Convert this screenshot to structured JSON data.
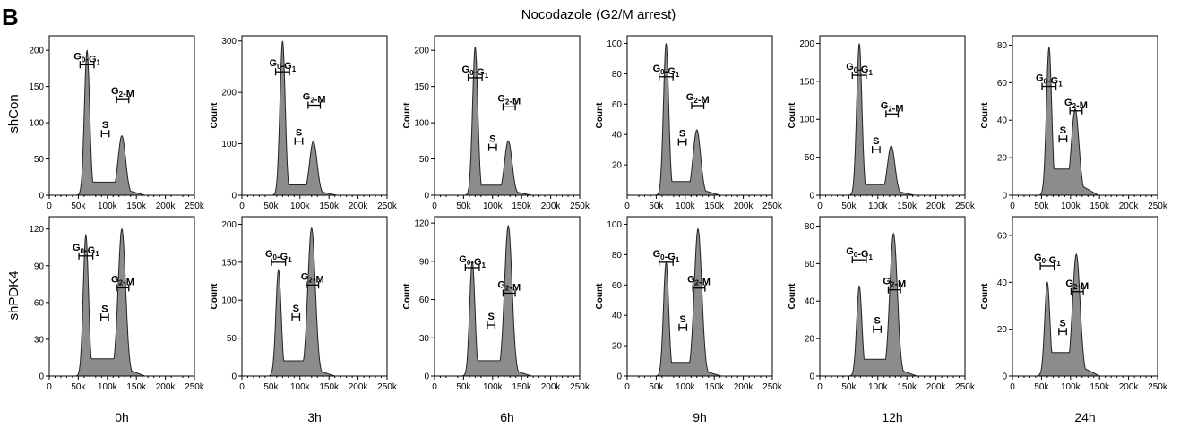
{
  "figure": {
    "panel_letter": "B",
    "title": "Nocodazole (G2/M arrest)",
    "row_labels": [
      "shCon",
      "shPDK4"
    ],
    "column_labels": [
      "0h",
      "3h",
      "6h",
      "9h",
      "12h",
      "24h"
    ]
  },
  "chart_data": {
    "type": "histogram-grid",
    "x_ticks": [
      "0",
      "50k",
      "100k",
      "150k",
      "200k",
      "250k"
    ],
    "xlim": [
      0,
      250000
    ],
    "gates": {
      "G0G1": {
        "main": "G",
        "sub1": "0",
        "mid": "-G",
        "sub2": "1"
      },
      "S": {
        "main": "S"
      },
      "G2M": {
        "main": "G",
        "sub1": "2",
        "rest": "-M"
      }
    },
    "panels": [
      {
        "row": 0,
        "col": 0,
        "ylabel": "",
        "ymax": 220,
        "y_ticks": [
          "0",
          "50",
          "100",
          "150",
          "200"
        ],
        "y_tick_values": [
          0,
          50,
          100,
          150,
          200
        ],
        "g1": {
          "peak": 65000,
          "height": 200
        },
        "g2": {
          "peak": 125000,
          "height": 82
        },
        "s_level": 18,
        "gate_y": {
          "g1": 180,
          "s": 85,
          "g2": 132
        }
      },
      {
        "row": 0,
        "col": 1,
        "ylabel": "Count",
        "ymax": 310,
        "y_ticks": [
          "0",
          "100",
          "200",
          "300"
        ],
        "y_tick_values": [
          0,
          100,
          200,
          300
        ],
        "g1": {
          "peak": 70000,
          "height": 300
        },
        "g2": {
          "peak": 123000,
          "height": 105
        },
        "s_level": 20,
        "gate_y": {
          "g1": 240,
          "s": 105,
          "g2": 175
        }
      },
      {
        "row": 0,
        "col": 2,
        "ylabel": "Count",
        "ymax": 220,
        "y_ticks": [
          "0",
          "50",
          "100",
          "150",
          "200"
        ],
        "y_tick_values": [
          0,
          50,
          100,
          150,
          200
        ],
        "g1": {
          "peak": 70000,
          "height": 205
        },
        "g2": {
          "peak": 127000,
          "height": 75
        },
        "s_level": 14,
        "gate_y": {
          "g1": 162,
          "s": 66,
          "g2": 122
        }
      },
      {
        "row": 0,
        "col": 3,
        "ylabel": "Count",
        "ymax": 105,
        "y_ticks": [
          "20",
          "40",
          "60",
          "80",
          "100"
        ],
        "y_tick_values": [
          20,
          40,
          60,
          80,
          100
        ],
        "g1": {
          "peak": 67000,
          "height": 100
        },
        "g2": {
          "peak": 120000,
          "height": 43
        },
        "s_level": 9,
        "gate_y": {
          "g1": 78,
          "s": 35,
          "g2": 59
        }
      },
      {
        "row": 0,
        "col": 4,
        "ylabel": "Count",
        "ymax": 210,
        "y_ticks": [
          "0",
          "50",
          "100",
          "150",
          "200"
        ],
        "y_tick_values": [
          0,
          50,
          100,
          150,
          200
        ],
        "g1": {
          "peak": 68000,
          "height": 200
        },
        "g2": {
          "peak": 123000,
          "height": 65
        },
        "s_level": 14,
        "gate_y": {
          "g1": 158,
          "s": 60,
          "g2": 107
        }
      },
      {
        "row": 0,
        "col": 5,
        "ylabel": "Count",
        "ymax": 85,
        "y_ticks": [
          "0",
          "20",
          "40",
          "60",
          "80"
        ],
        "y_tick_values": [
          0,
          20,
          40,
          60,
          80
        ],
        "g1": {
          "peak": 63000,
          "height": 79
        },
        "g2": {
          "peak": 108000,
          "height": 46
        },
        "s_level": 14,
        "gate_y": {
          "g1": 58,
          "s": 30,
          "g2": 45
        }
      },
      {
        "row": 1,
        "col": 0,
        "ylabel": "",
        "ymax": 130,
        "y_ticks": [
          "0",
          "30",
          "60",
          "90",
          "120"
        ],
        "y_tick_values": [
          0,
          30,
          60,
          90,
          120
        ],
        "g1": {
          "peak": 63000,
          "height": 115
        },
        "g2": {
          "peak": 125000,
          "height": 120
        },
        "s_level": 14,
        "gate_y": {
          "g1": 98,
          "s": 48,
          "g2": 72
        }
      },
      {
        "row": 1,
        "col": 1,
        "ylabel": "Count",
        "ymax": 210,
        "y_ticks": [
          "0",
          "50",
          "100",
          "150",
          "200"
        ],
        "y_tick_values": [
          0,
          50,
          100,
          150,
          200
        ],
        "g1": {
          "peak": 63000,
          "height": 140
        },
        "g2": {
          "peak": 120000,
          "height": 195
        },
        "s_level": 20,
        "gate_y": {
          "g1": 150,
          "s": 78,
          "g2": 120
        }
      },
      {
        "row": 1,
        "col": 2,
        "ylabel": "Count",
        "ymax": 125,
        "y_ticks": [
          "0",
          "30",
          "60",
          "90",
          "120"
        ],
        "y_tick_values": [
          0,
          30,
          60,
          90,
          120
        ],
        "g1": {
          "peak": 65000,
          "height": 90
        },
        "g2": {
          "peak": 127000,
          "height": 118
        },
        "s_level": 12,
        "gate_y": {
          "g1": 85,
          "s": 40,
          "g2": 65
        }
      },
      {
        "row": 1,
        "col": 3,
        "ylabel": "Count",
        "ymax": 105,
        "y_ticks": [
          "0",
          "20",
          "40",
          "60",
          "80",
          "100"
        ],
        "y_tick_values": [
          0,
          20,
          40,
          60,
          80,
          100
        ],
        "g1": {
          "peak": 67000,
          "height": 75
        },
        "g2": {
          "peak": 122000,
          "height": 97
        },
        "s_level": 9,
        "gate_y": {
          "g1": 75,
          "s": 32,
          "g2": 58
        }
      },
      {
        "row": 1,
        "col": 4,
        "ylabel": "Count",
        "ymax": 85,
        "y_ticks": [
          "0",
          "20",
          "40",
          "60",
          "80"
        ],
        "y_tick_values": [
          0,
          20,
          40,
          60,
          80
        ],
        "g1": {
          "peak": 68000,
          "height": 48
        },
        "g2": {
          "peak": 127000,
          "height": 76
        },
        "s_level": 9,
        "gate_y": {
          "g1": 62,
          "s": 25,
          "g2": 46
        }
      },
      {
        "row": 1,
        "col": 5,
        "ylabel": "Count",
        "ymax": 68,
        "y_ticks": [
          "0",
          "20",
          "40",
          "60"
        ],
        "y_tick_values": [
          0,
          20,
          40,
          60
        ],
        "g1": {
          "peak": 60000,
          "height": 40
        },
        "g2": {
          "peak": 110000,
          "height": 52
        },
        "s_level": 10,
        "gate_y": {
          "g1": 47,
          "s": 19,
          "g2": 36
        }
      }
    ]
  }
}
